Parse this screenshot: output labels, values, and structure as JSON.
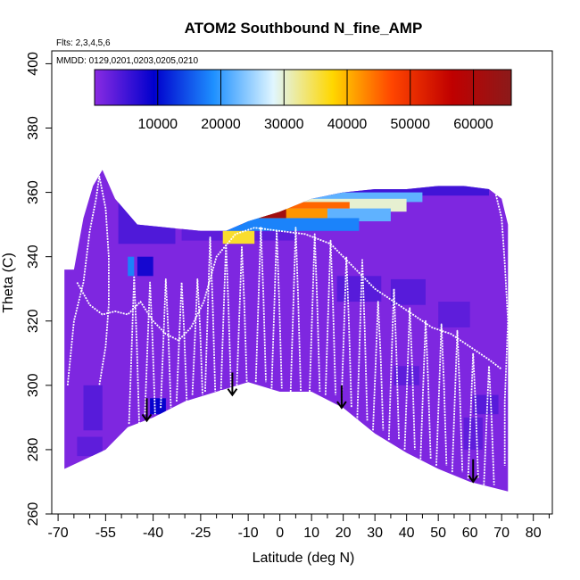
{
  "chart_data": {
    "type": "heatmap",
    "title": "ATOM2 Southbound N_fine_AMP",
    "flights_label": "Flts: 2,3,4,5,6",
    "dates_label": "MMDD: 0129,0201,0203,0205,0210",
    "xlabel": "Latitude (deg N)",
    "ylabel": "Theta (C)",
    "xlim": [
      -72,
      86
    ],
    "ylim": [
      260,
      404
    ],
    "x_ticks": [
      -70,
      -55,
      -40,
      -25,
      -10,
      0,
      10,
      20,
      30,
      40,
      50,
      60,
      70,
      80
    ],
    "x_tick_labels": [
      "-70",
      "-55",
      "-40",
      "-25",
      "-10",
      "0",
      "10",
      "20",
      "30",
      "40",
      "50",
      "60",
      "70",
      "80"
    ],
    "x_minor_ticks": [
      -65,
      -60,
      -50,
      -45,
      -35,
      -30,
      -20,
      -15,
      -5,
      5,
      15,
      25,
      35,
      45,
      55,
      65,
      75,
      85
    ],
    "y_ticks": [
      260,
      280,
      300,
      320,
      340,
      360,
      380,
      400
    ],
    "y_tick_labels": [
      "260",
      "280",
      "300",
      "320",
      "340",
      "360",
      "380",
      "400"
    ],
    "colorbar": {
      "range": [
        0,
        66000
      ],
      "ticks": [
        10000,
        20000,
        30000,
        40000,
        50000,
        60000
      ],
      "tick_labels": [
        "10000",
        "20000",
        "30000",
        "40000",
        "50000",
        "60000"
      ],
      "colors": [
        "#8a2be2",
        "#0000cd",
        "#1e90ff",
        "#e0f6ff",
        "#ffd700",
        "#ff4500",
        "#c00000",
        "#8b1a1a"
      ]
    },
    "background_value": 800,
    "colors": {
      "background": "#7a25e6",
      "trajectory": "#ffffff",
      "arrow": "#000000"
    },
    "domain_top": [
      [
        -68,
        336
      ],
      [
        -65,
        336
      ],
      [
        -62,
        352
      ],
      [
        -59,
        362
      ],
      [
        -56,
        367
      ],
      [
        -52,
        358
      ],
      [
        -45,
        350
      ],
      [
        -35,
        349
      ],
      [
        -25,
        348
      ],
      [
        -17,
        348
      ],
      [
        -10,
        351
      ],
      [
        0,
        354
      ],
      [
        10,
        358
      ],
      [
        20,
        360
      ],
      [
        30,
        361
      ],
      [
        40,
        361
      ],
      [
        50,
        362
      ],
      [
        58,
        362
      ],
      [
        66,
        361
      ],
      [
        70,
        358
      ],
      [
        71,
        354
      ],
      [
        72,
        350
      ]
    ],
    "domain_bottom": [
      [
        -68,
        274
      ],
      [
        -55,
        280
      ],
      [
        -48,
        287
      ],
      [
        -40,
        290
      ],
      [
        -30,
        295
      ],
      [
        -20,
        298
      ],
      [
        -10,
        301
      ],
      [
        0,
        298
      ],
      [
        10,
        298
      ],
      [
        20,
        293
      ],
      [
        30,
        285
      ],
      [
        40,
        279
      ],
      [
        50,
        274
      ],
      [
        60,
        270
      ],
      [
        72,
        267
      ]
    ],
    "features": [
      {
        "lat": [
          -51,
          -33
        ],
        "theta": [
          344,
          362
        ],
        "value": 4000
      },
      {
        "lat": [
          -45,
          -40
        ],
        "theta": [
          334,
          340
        ],
        "value": 8000
      },
      {
        "lat": [
          -48,
          -46
        ],
        "theta": [
          334,
          340
        ],
        "value": 18000
      },
      {
        "lat": [
          -41,
          -36
        ],
        "theta": [
          291,
          296
        ],
        "value": 9000
      },
      {
        "lat": [
          -62,
          -56
        ],
        "theta": [
          286,
          300
        ],
        "value": 3500
      },
      {
        "lat": [
          -31,
          5
        ],
        "theta": [
          345,
          350
        ],
        "value": 3000
      },
      {
        "lat": [
          -33,
          66
        ],
        "theta": [
          359,
          362
        ],
        "value": 5000
      },
      {
        "lat": [
          -30,
          0
        ],
        "theta": [
          361,
          363
        ],
        "value": 15000
      },
      {
        "lat": [
          -28,
          45
        ],
        "theta": [
          357,
          360
        ],
        "value": 22000
      },
      {
        "lat": [
          -24,
          40
        ],
        "theta": [
          354,
          358
        ],
        "value": 30000
      },
      {
        "lat": [
          -22,
          35
        ],
        "theta": [
          351,
          355
        ],
        "value": 22000
      },
      {
        "lat": [
          -20,
          25
        ],
        "theta": [
          348,
          352
        ],
        "value": 18000
      },
      {
        "lat": [
          -15,
          22
        ],
        "theta": [
          355,
          357
        ],
        "value": 45000
      },
      {
        "lat": [
          -16,
          15
        ],
        "theta": [
          352,
          355
        ],
        "value": 42000
      },
      {
        "lat": [
          -14,
          2
        ],
        "theta": [
          352,
          355
        ],
        "value": 62000
      },
      {
        "lat": [
          -18,
          -12
        ],
        "theta": [
          350,
          353
        ],
        "value": 47000
      },
      {
        "lat": [
          -18,
          -8
        ],
        "theta": [
          344,
          348
        ],
        "value": 36000
      },
      {
        "lat": [
          18,
          32
        ],
        "theta": [
          326,
          334
        ],
        "value": 3500
      },
      {
        "lat": [
          35,
          46
        ],
        "theta": [
          325,
          333
        ],
        "value": 3500
      },
      {
        "lat": [
          50,
          60
        ],
        "theta": [
          318,
          326
        ],
        "value": 3000
      },
      {
        "lat": [
          36,
          44
        ],
        "theta": [
          300,
          306
        ],
        "value": 3000
      },
      {
        "lat": [
          58,
          64
        ],
        "theta": [
          280,
          290
        ],
        "value": 3000
      },
      {
        "lat": [
          61,
          69
        ],
        "theta": [
          291,
          297
        ],
        "value": 3500
      },
      {
        "lat": [
          -64,
          -56
        ],
        "theta": [
          278,
          284
        ],
        "value": 3000
      }
    ],
    "arrows": [
      {
        "lat": -42,
        "theta_tail": 296,
        "theta_head": 289
      },
      {
        "lat": -15,
        "theta_tail": 304,
        "theta_head": 297
      },
      {
        "lat": 19.5,
        "theta_tail": 300,
        "theta_head": 293
      },
      {
        "lat": 61,
        "theta_tail": 277,
        "theta_head": 270
      }
    ],
    "profiles": [
      {
        "lat": -46,
        "top": 334,
        "bottom": 288
      },
      {
        "lat": -41,
        "top": 332,
        "bottom": 291
      },
      {
        "lat": -36,
        "top": 333,
        "bottom": 293
      },
      {
        "lat": -31,
        "top": 332,
        "bottom": 295
      },
      {
        "lat": -26,
        "top": 333,
        "bottom": 297
      },
      {
        "lat": -22,
        "top": 346,
        "bottom": 298
      },
      {
        "lat": -17,
        "top": 344,
        "bottom": 298
      },
      {
        "lat": -12,
        "top": 343,
        "bottom": 300
      },
      {
        "lat": -6,
        "top": 349,
        "bottom": 301
      },
      {
        "lat": -1,
        "top": 348,
        "bottom": 299
      },
      {
        "lat": 5,
        "top": 349,
        "bottom": 298
      },
      {
        "lat": 11,
        "top": 347,
        "bottom": 298
      },
      {
        "lat": 16,
        "top": 345,
        "bottom": 297
      },
      {
        "lat": 21,
        "top": 340,
        "bottom": 293
      },
      {
        "lat": 26,
        "top": 339,
        "bottom": 289
      },
      {
        "lat": 31,
        "top": 326,
        "bottom": 286
      },
      {
        "lat": 36,
        "top": 330,
        "bottom": 283
      },
      {
        "lat": 41,
        "top": 324,
        "bottom": 280
      },
      {
        "lat": 46,
        "top": 320,
        "bottom": 277
      },
      {
        "lat": 51,
        "top": 319,
        "bottom": 275
      },
      {
        "lat": 56,
        "top": 317,
        "bottom": 273
      },
      {
        "lat": 61,
        "top": 310,
        "bottom": 271
      },
      {
        "lat": 66,
        "top": 306,
        "bottom": 269
      }
    ],
    "west_edge_profile": [
      [
        -67,
        300
      ],
      [
        -65,
        320
      ],
      [
        -62,
        332
      ],
      [
        -60,
        348
      ],
      [
        -58,
        358
      ],
      [
        -57,
        365
      ],
      [
        -55,
        355
      ],
      [
        -54,
        340
      ],
      [
        -54,
        325
      ],
      [
        -55,
        312
      ],
      [
        -57,
        300
      ]
    ],
    "east_edge_profile": [
      [
        66,
        362
      ],
      [
        68,
        360
      ],
      [
        70,
        352
      ],
      [
        71,
        338
      ],
      [
        72,
        320
      ],
      [
        71,
        295
      ],
      [
        71,
        275
      ]
    ],
    "upper_path": [
      [
        -64,
        332
      ],
      [
        -60,
        325
      ],
      [
        -56,
        322
      ],
      [
        -52,
        323
      ],
      [
        -48,
        322
      ],
      [
        -44,
        326
      ],
      [
        -40,
        320
      ],
      [
        -36,
        316
      ],
      [
        -32,
        314
      ],
      [
        -28,
        318
      ],
      [
        -24,
        326
      ],
      [
        -20,
        340
      ],
      [
        -14,
        347
      ],
      [
        -8,
        349
      ],
      [
        0,
        348
      ],
      [
        8,
        347
      ],
      [
        16,
        344
      ],
      [
        24,
        336
      ],
      [
        30,
        330
      ],
      [
        36,
        326
      ],
      [
        42,
        322
      ],
      [
        48,
        318
      ],
      [
        54,
        316
      ],
      [
        60,
        312
      ],
      [
        66,
        308
      ],
      [
        70,
        305
      ]
    ]
  }
}
